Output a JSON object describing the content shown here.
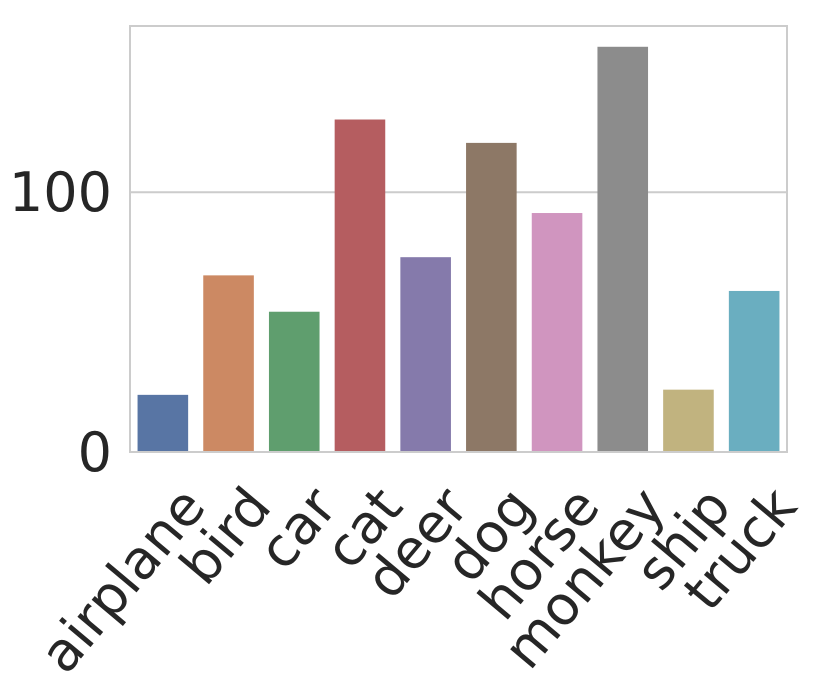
{
  "chart_data": {
    "type": "bar",
    "title": "",
    "xlabel": "",
    "ylabel": "",
    "categories": [
      "airplane",
      "bird",
      "car",
      "cat",
      "deer",
      "dog",
      "horse",
      "monkey",
      "ship",
      "truck"
    ],
    "values": [
      22,
      68,
      54,
      128,
      75,
      119,
      92,
      156,
      24,
      62
    ],
    "colors": [
      "#5875a4",
      "#cc8963",
      "#5f9e6e",
      "#b55d60",
      "#857aab",
      "#8d7866",
      "#d095bf",
      "#8c8c8c",
      "#c1b37f",
      "#6aaec0"
    ],
    "ylim": [
      0,
      164
    ],
    "yticks": [
      0,
      100
    ],
    "ytick_labels": [
      "0",
      "100"
    ],
    "grid": true,
    "grid_color": "#cccccc",
    "tick_label_rotation_deg": -50
  }
}
